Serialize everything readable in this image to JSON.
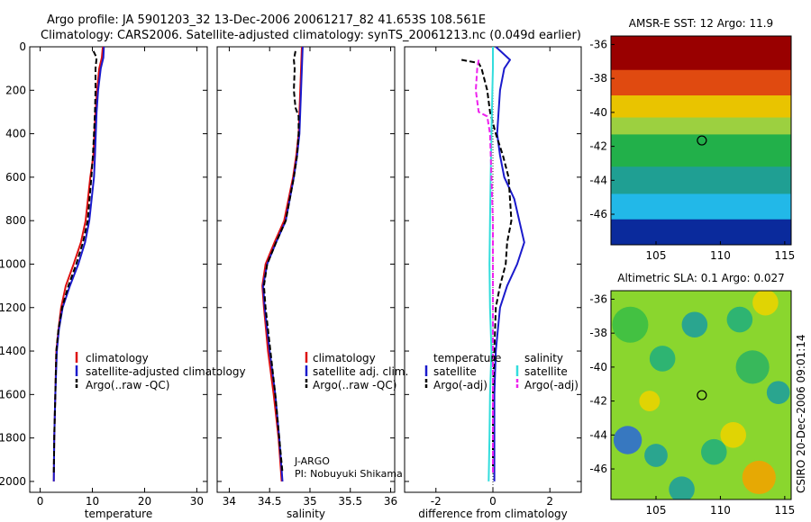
{
  "header": {
    "line1": "Argo profile: JA 5901203_32 13-Dec-2006 20061217_82 41.653S 108.561E",
    "line2": "Climatology: CARS2006. Satellite-adjusted climatology: synTS_20061213.nc (0.049d earlier)"
  },
  "credit": {
    "org": "J-ARGO",
    "pi": "PI: Nobuyuki Shikama"
  },
  "stamp": "CSIRO 20-Dec-2006 09:01:14",
  "colors": {
    "red": "#dd1111",
    "blue": "#1a1acc",
    "black": "#000000",
    "cyan": "#33dddd",
    "magenta": "#ee22ee"
  },
  "chart_data": [
    {
      "type": "line",
      "id": "temperature",
      "xlabel": "temperature",
      "ylabel": "",
      "xlim": [
        -2,
        32
      ],
      "ylim": [
        2050,
        0
      ],
      "xticks": [
        0,
        10,
        20,
        30
      ],
      "xticklabels": [
        "0",
        "10",
        "20",
        "30"
      ],
      "yticks": [
        0,
        200,
        400,
        600,
        800,
        1000,
        1200,
        1400,
        1600,
        1800,
        2000
      ],
      "yticklabels": [
        "0",
        "200",
        "400",
        "600",
        "800",
        "1000",
        "1200",
        "1400",
        "1600",
        "1800",
        "2000"
      ],
      "legend": [
        "climatology",
        "satellite-adjusted climatology",
        "Argo(..raw -QC)"
      ],
      "series": [
        {
          "name": "climatology",
          "color": "red",
          "dash": false,
          "points": [
            [
              12,
              0
            ],
            [
              11.8,
              50
            ],
            [
              11.3,
              100
            ],
            [
              10.9,
              200
            ],
            [
              10.6,
              300
            ],
            [
              10.2,
              500
            ],
            [
              9.6,
              600
            ],
            [
              8.7,
              800
            ],
            [
              7.8,
              900
            ],
            [
              6.4,
              1000
            ],
            [
              4.9,
              1100
            ],
            [
              4,
              1200
            ],
            [
              3.5,
              1300
            ],
            [
              3.1,
              1400
            ],
            [
              2.9,
              1600
            ],
            [
              2.7,
              1800
            ],
            [
              2.6,
              2000
            ]
          ]
        },
        {
          "name": "satellite-adjusted climatology",
          "color": "blue",
          "dash": false,
          "points": [
            [
              12.2,
              0
            ],
            [
              12.1,
              50
            ],
            [
              11.6,
              100
            ],
            [
              11.1,
              200
            ],
            [
              10.8,
              300
            ],
            [
              10.5,
              500
            ],
            [
              10.3,
              600
            ],
            [
              9.4,
              800
            ],
            [
              8.6,
              900
            ],
            [
              7.3,
              1000
            ],
            [
              5.7,
              1100
            ],
            [
              4.3,
              1200
            ],
            [
              3.6,
              1300
            ],
            [
              3.2,
              1400
            ],
            [
              2.9,
              1600
            ],
            [
              2.7,
              1800
            ],
            [
              2.6,
              2000
            ]
          ]
        },
        {
          "name": "Argo(..raw -QC)",
          "color": "black",
          "dash": true,
          "points": [
            [
              10.2,
              20
            ],
            [
              10.8,
              50
            ],
            [
              10.6,
              100
            ],
            [
              10.6,
              200
            ],
            [
              10.5,
              300
            ],
            [
              10.3,
              400
            ],
            [
              10.1,
              500
            ],
            [
              9.8,
              600
            ],
            [
              9.1,
              800
            ],
            [
              8.2,
              900
            ],
            [
              6.9,
              1000
            ],
            [
              5.4,
              1100
            ],
            [
              4.2,
              1200
            ],
            [
              3.5,
              1300
            ],
            [
              3.1,
              1400
            ],
            [
              2.9,
              1600
            ],
            [
              2.7,
              1800
            ],
            [
              2.6,
              1960
            ]
          ]
        }
      ]
    },
    {
      "type": "line",
      "id": "salinity",
      "xlabel": "salinity",
      "xlim": [
        33.85,
        36.05
      ],
      "ylim": [
        2050,
        0
      ],
      "xticks": [
        34,
        34.5,
        35,
        35.5,
        36
      ],
      "xticklabels": [
        "34",
        "34.5",
        "35",
        "35.5",
        "36"
      ],
      "legend": [
        "climatology",
        "satellite adj. clim.",
        "Argo(..raw -QC)"
      ],
      "series": [
        {
          "name": "climatology",
          "color": "red",
          "dash": false,
          "points": [
            [
              34.9,
              0
            ],
            [
              34.89,
              100
            ],
            [
              34.88,
              200
            ],
            [
              34.87,
              300
            ],
            [
              34.86,
              400
            ],
            [
              34.83,
              500
            ],
            [
              34.79,
              600
            ],
            [
              34.68,
              800
            ],
            [
              34.56,
              900
            ],
            [
              34.45,
              1000
            ],
            [
              34.41,
              1100
            ],
            [
              34.43,
              1200
            ],
            [
              34.48,
              1400
            ],
            [
              34.55,
              1600
            ],
            [
              34.61,
              1800
            ],
            [
              34.65,
              2000
            ]
          ]
        },
        {
          "name": "satellite adj. clim.",
          "color": "blue",
          "dash": false,
          "points": [
            [
              34.91,
              0
            ],
            [
              34.9,
              100
            ],
            [
              34.89,
              200
            ],
            [
              34.88,
              300
            ],
            [
              34.87,
              400
            ],
            [
              34.84,
              500
            ],
            [
              34.8,
              600
            ],
            [
              34.7,
              800
            ],
            [
              34.58,
              900
            ],
            [
              34.47,
              1000
            ],
            [
              34.42,
              1100
            ],
            [
              34.44,
              1200
            ],
            [
              34.5,
              1400
            ],
            [
              34.57,
              1600
            ],
            [
              34.62,
              1800
            ],
            [
              34.66,
              2000
            ]
          ]
        },
        {
          "name": "Argo(..raw -QC)",
          "color": "black",
          "dash": true,
          "points": [
            [
              34.82,
              20
            ],
            [
              34.8,
              60
            ],
            [
              34.81,
              100
            ],
            [
              34.8,
              200
            ],
            [
              34.82,
              280
            ],
            [
              34.86,
              320
            ],
            [
              34.86,
              400
            ],
            [
              34.84,
              500
            ],
            [
              34.8,
              600
            ],
            [
              34.7,
              800
            ],
            [
              34.58,
              900
            ],
            [
              34.47,
              1000
            ],
            [
              34.43,
              1100
            ],
            [
              34.45,
              1200
            ],
            [
              34.51,
              1400
            ],
            [
              34.57,
              1600
            ],
            [
              34.62,
              1800
            ],
            [
              34.66,
              1960
            ]
          ]
        }
      ]
    },
    {
      "type": "line",
      "id": "difference",
      "xlabel": "difference from climatology",
      "xlim": [
        -3.1,
        3.1
      ],
      "ylim": [
        2050,
        0
      ],
      "xticks": [
        -2,
        0,
        2
      ],
      "xticklabels": [
        "-2",
        "0",
        "2"
      ],
      "legend_headers": [
        "temperature",
        "salinity"
      ],
      "legend": [
        "satellite",
        "Argo(-adj)",
        "satellite",
        "Argo(-adj)"
      ],
      "series": [
        {
          "name": "temperature satellite",
          "color": "blue",
          "dash": false,
          "points": [
            [
              0.1,
              0
            ],
            [
              0.6,
              60
            ],
            [
              0.4,
              100
            ],
            [
              0.25,
              200
            ],
            [
              0.15,
              400
            ],
            [
              0.25,
              500
            ],
            [
              0.4,
              600
            ],
            [
              0.75,
              700
            ],
            [
              1.1,
              900
            ],
            [
              0.85,
              1000
            ],
            [
              0.5,
              1100
            ],
            [
              0.25,
              1200
            ],
            [
              0.1,
              1400
            ],
            [
              0.05,
              1600
            ],
            [
              0.05,
              1800
            ],
            [
              0.05,
              2000
            ]
          ]
        },
        {
          "name": "temperature Argo(-adj)",
          "color": "black",
          "dash": true,
          "points": [
            [
              -1.1,
              60
            ],
            [
              -0.5,
              75
            ],
            [
              -0.4,
              100
            ],
            [
              -0.2,
              200
            ],
            [
              -0.1,
              300
            ],
            [
              0.1,
              400
            ],
            [
              0.35,
              500
            ],
            [
              0.55,
              600
            ],
            [
              0.65,
              800
            ],
            [
              0.5,
              900
            ],
            [
              0.45,
              1000
            ],
            [
              0.25,
              1100
            ],
            [
              0.1,
              1200
            ],
            [
              0.05,
              1400
            ],
            [
              0,
              1600
            ],
            [
              0,
              1800
            ],
            [
              0,
              1960
            ]
          ]
        },
        {
          "name": "salinity satellite",
          "color": "cyan",
          "dash": false,
          "points": [
            [
              0,
              0
            ],
            [
              0,
              100
            ],
            [
              -0.02,
              200
            ],
            [
              -0.05,
              400
            ],
            [
              -0.08,
              600
            ],
            [
              -0.1,
              800
            ],
            [
              -0.12,
              1000
            ],
            [
              -0.1,
              1200
            ],
            [
              -0.05,
              1400
            ],
            [
              -0.1,
              1600
            ],
            [
              -0.12,
              1800
            ],
            [
              -0.15,
              2000
            ]
          ]
        },
        {
          "name": "salinity Argo(-adj)",
          "color": "magenta",
          "dash": true,
          "points": [
            [
              -0.5,
              60
            ],
            [
              -0.55,
              100
            ],
            [
              -0.6,
              200
            ],
            [
              -0.5,
              300
            ],
            [
              -0.2,
              320
            ],
            [
              -0.1,
              400
            ],
            [
              -0.05,
              600
            ],
            [
              0,
              800
            ],
            [
              0,
              1000
            ],
            [
              0,
              1200
            ],
            [
              0,
              1400
            ],
            [
              0,
              1600
            ],
            [
              0,
              1800
            ],
            [
              0,
              1960
            ]
          ]
        }
      ]
    },
    {
      "type": "heatmap",
      "id": "sst_map",
      "title": "AMSR-E SST: 12 Argo: 11.9",
      "xlim": [
        101.5,
        115.5
      ],
      "ylim": [
        -47.8,
        -35.5
      ],
      "xticks": [
        105,
        110,
        115
      ],
      "xticklabels": [
        "105",
        "110",
        "115"
      ],
      "yticks": [
        -36,
        -38,
        -40,
        -42,
        -44,
        -46
      ],
      "yticklabels": [
        "-36",
        "-38",
        "-40",
        "-42",
        "-44",
        "-46"
      ],
      "marker": [
        108.561,
        -41.653
      ],
      "bands": [
        {
          "from": -35.5,
          "to": -37.5,
          "color": "#990000"
        },
        {
          "from": -37.5,
          "to": -39.0,
          "color": "#e04a10"
        },
        {
          "from": -39.0,
          "to": -40.3,
          "color": "#e9c400"
        },
        {
          "from": -40.3,
          "to": -41.3,
          "color": "#9cd040"
        },
        {
          "from": -41.3,
          "to": -43.2,
          "color": "#22b04a"
        },
        {
          "from": -43.2,
          "to": -44.8,
          "color": "#1f9f93"
        },
        {
          "from": -44.8,
          "to": -46.3,
          "color": "#22b8e8"
        },
        {
          "from": -46.3,
          "to": -47.8,
          "color": "#0a2a9c"
        }
      ]
    },
    {
      "type": "heatmap",
      "id": "sla_map",
      "title": "Altimetric SLA: 0.1 Argo: 0.027",
      "xlim": [
        101.5,
        115.5
      ],
      "ylim": [
        -47.8,
        -35.5
      ],
      "xticks": [
        105,
        110,
        115
      ],
      "xticklabels": [
        "105",
        "110",
        "115"
      ],
      "yticks": [
        -36,
        -38,
        -40,
        -42,
        -44,
        -46
      ],
      "yticklabels": [
        "-36",
        "-38",
        "-40",
        "-42",
        "-44",
        "-46"
      ],
      "marker": [
        108.561,
        -41.653
      ],
      "background": "#8ad62e",
      "blobs": [
        {
          "lon": 103.0,
          "lat": -37.5,
          "r": 1.4,
          "color": "#3bbf45"
        },
        {
          "lon": 105.5,
          "lat": -39.5,
          "r": 1.0,
          "color": "#23b07a"
        },
        {
          "lon": 108.0,
          "lat": -37.5,
          "r": 1.0,
          "color": "#1fa09a"
        },
        {
          "lon": 111.5,
          "lat": -37.2,
          "r": 1.0,
          "color": "#23b07a"
        },
        {
          "lon": 113.5,
          "lat": -36.2,
          "r": 1.0,
          "color": "#e9d400"
        },
        {
          "lon": 112.5,
          "lat": -40.0,
          "r": 1.3,
          "color": "#2fb560"
        },
        {
          "lon": 114.5,
          "lat": -41.5,
          "r": 0.9,
          "color": "#1fa09a"
        },
        {
          "lon": 102.8,
          "lat": -44.3,
          "r": 1.1,
          "color": "#2d6ed0"
        },
        {
          "lon": 105.0,
          "lat": -45.2,
          "r": 0.9,
          "color": "#1fa09a"
        },
        {
          "lon": 109.5,
          "lat": -45.0,
          "r": 1.0,
          "color": "#23b07a"
        },
        {
          "lon": 111.0,
          "lat": -44.0,
          "r": 1.0,
          "color": "#e9d400"
        },
        {
          "lon": 113.0,
          "lat": -46.5,
          "r": 1.3,
          "color": "#f0a400"
        },
        {
          "lon": 104.5,
          "lat": -42.0,
          "r": 0.8,
          "color": "#e9d400"
        },
        {
          "lon": 107.0,
          "lat": -47.2,
          "r": 1.0,
          "color": "#1fa09a"
        }
      ]
    }
  ]
}
